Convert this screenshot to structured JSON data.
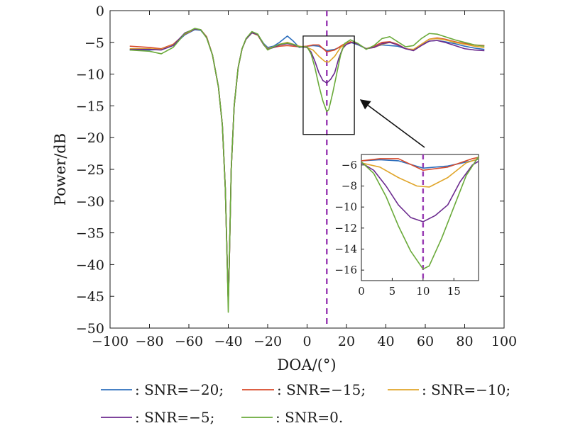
{
  "chart_data": {
    "type": "line",
    "xlabel": "DOA/(°)",
    "ylabel": "Power/dB",
    "xlim": [
      -100,
      100
    ],
    "ylim": [
      -50,
      0
    ],
    "xticks": [
      -100,
      -80,
      -60,
      -40,
      -20,
      0,
      20,
      40,
      60,
      80,
      100
    ],
    "yticks": [
      0,
      -5,
      -10,
      -15,
      -20,
      -25,
      -30,
      -35,
      -40,
      -45,
      -50
    ],
    "xtick_labels": [
      "−100",
      "−80",
      "−60",
      "−40",
      "−20",
      "0",
      "20",
      "40",
      "60",
      "80",
      "100"
    ],
    "ytick_labels": [
      "0",
      "−5",
      "−10",
      "−15",
      "−20",
      "−25",
      "−30",
      "−35",
      "−40",
      "−45",
      "−50"
    ],
    "grid": false,
    "reference_line": {
      "x": 10,
      "color": "#9b3fb5",
      "style": "dashed"
    },
    "series": [
      {
        "name": "SNR=-20",
        "color": "#2e6fbd",
        "points": [
          [
            -90,
            -6.2
          ],
          [
            -80,
            -6.2
          ],
          [
            -74,
            -6.1
          ],
          [
            -68,
            -5.5
          ],
          [
            -62,
            -3.8
          ],
          [
            -57,
            -3.0
          ],
          [
            -54,
            -3.1
          ],
          [
            -51,
            -4.2
          ],
          [
            -48,
            -7.0
          ],
          [
            -45,
            -12.0
          ],
          [
            -43,
            -18.0
          ],
          [
            -41.5,
            -28.0
          ],
          [
            -40.5,
            -40.0
          ],
          [
            -40,
            -46.0
          ],
          [
            -39.5,
            -40.0
          ],
          [
            -38.5,
            -25.0
          ],
          [
            -37,
            -15.0
          ],
          [
            -35,
            -9.0
          ],
          [
            -33,
            -6.0
          ],
          [
            -31,
            -4.5
          ],
          [
            -28,
            -3.5
          ],
          [
            -25,
            -3.8
          ],
          [
            -22,
            -5.2
          ],
          [
            -20,
            -5.8
          ],
          [
            -17,
            -5.6
          ],
          [
            -14,
            -5.0
          ],
          [
            -10,
            -4.0
          ],
          [
            -7,
            -4.8
          ],
          [
            -4,
            -5.8
          ],
          [
            0,
            -5.6
          ],
          [
            3,
            -5.5
          ],
          [
            6,
            -5.6
          ],
          [
            10,
            -6.3
          ],
          [
            14,
            -6.1
          ],
          [
            18,
            -5.6
          ],
          [
            22,
            -5.0
          ],
          [
            26,
            -5.4
          ],
          [
            30,
            -6.0
          ],
          [
            34,
            -5.7
          ],
          [
            38,
            -5.4
          ],
          [
            42,
            -5.5
          ],
          [
            46,
            -5.6
          ],
          [
            50,
            -6.0
          ],
          [
            54,
            -6.2
          ],
          [
            58,
            -5.4
          ],
          [
            62,
            -4.8
          ],
          [
            66,
            -4.7
          ],
          [
            70,
            -4.9
          ],
          [
            75,
            -5.2
          ],
          [
            80,
            -5.6
          ],
          [
            85,
            -5.9
          ],
          [
            90,
            -6.1
          ]
        ]
      },
      {
        "name": "SNR=-15",
        "color": "#d84a2a",
        "points": [
          [
            -90,
            -5.6
          ],
          [
            -80,
            -5.8
          ],
          [
            -74,
            -6.0
          ],
          [
            -68,
            -5.3
          ],
          [
            -62,
            -3.7
          ],
          [
            -57,
            -2.9
          ],
          [
            -54,
            -3.0
          ],
          [
            -51,
            -4.1
          ],
          [
            -48,
            -7.0
          ],
          [
            -45,
            -12.0
          ],
          [
            -43,
            -18.0
          ],
          [
            -41.5,
            -28.0
          ],
          [
            -40.5,
            -40.0
          ],
          [
            -40,
            -46.0
          ],
          [
            -39.5,
            -40.0
          ],
          [
            -38.5,
            -25.0
          ],
          [
            -37,
            -15.0
          ],
          [
            -35,
            -9.0
          ],
          [
            -33,
            -6.0
          ],
          [
            -31,
            -4.5
          ],
          [
            -28,
            -3.4
          ],
          [
            -25,
            -3.8
          ],
          [
            -22,
            -5.3
          ],
          [
            -20,
            -6.0
          ],
          [
            -17,
            -5.8
          ],
          [
            -14,
            -5.6
          ],
          [
            -10,
            -5.5
          ],
          [
            -7,
            -5.6
          ],
          [
            -4,
            -5.7
          ],
          [
            0,
            -5.6
          ],
          [
            3,
            -5.4
          ],
          [
            6,
            -5.4
          ],
          [
            10,
            -6.5
          ],
          [
            14,
            -6.2
          ],
          [
            18,
            -5.4
          ],
          [
            22,
            -4.9
          ],
          [
            26,
            -5.3
          ],
          [
            30,
            -6.0
          ],
          [
            34,
            -5.6
          ],
          [
            38,
            -5.0
          ],
          [
            42,
            -4.9
          ],
          [
            46,
            -5.3
          ],
          [
            50,
            -6.0
          ],
          [
            54,
            -6.2
          ],
          [
            58,
            -5.3
          ],
          [
            62,
            -4.5
          ],
          [
            66,
            -4.3
          ],
          [
            70,
            -4.5
          ],
          [
            75,
            -4.9
          ],
          [
            80,
            -5.2
          ],
          [
            85,
            -5.4
          ],
          [
            90,
            -5.5
          ]
        ]
      },
      {
        "name": "SNR=-10",
        "color": "#e0a52a",
        "points": [
          [
            -90,
            -6.0
          ],
          [
            -80,
            -6.0
          ],
          [
            -74,
            -6.1
          ],
          [
            -68,
            -5.4
          ],
          [
            -62,
            -3.6
          ],
          [
            -57,
            -2.9
          ],
          [
            -54,
            -3.0
          ],
          [
            -51,
            -4.1
          ],
          [
            -48,
            -7.0
          ],
          [
            -45,
            -12.0
          ],
          [
            -43,
            -18.0
          ],
          [
            -41.5,
            -28.0
          ],
          [
            -40.5,
            -40.0
          ],
          [
            -40,
            -46.0
          ],
          [
            -39.5,
            -40.0
          ],
          [
            -38.5,
            -25.0
          ],
          [
            -37,
            -15.0
          ],
          [
            -35,
            -9.0
          ],
          [
            -33,
            -6.0
          ],
          [
            -31,
            -4.5
          ],
          [
            -28,
            -3.5
          ],
          [
            -25,
            -3.9
          ],
          [
            -22,
            -5.4
          ],
          [
            -20,
            -6.0
          ],
          [
            -17,
            -5.7
          ],
          [
            -14,
            -5.3
          ],
          [
            -10,
            -5.0
          ],
          [
            -7,
            -5.3
          ],
          [
            -4,
            -5.6
          ],
          [
            0,
            -5.8
          ],
          [
            3,
            -6.2
          ],
          [
            6,
            -7.2
          ],
          [
            9,
            -8.0
          ],
          [
            11,
            -8.1
          ],
          [
            14,
            -7.2
          ],
          [
            17,
            -5.8
          ],
          [
            20,
            -5.2
          ],
          [
            23,
            -5.0
          ],
          [
            26,
            -5.3
          ],
          [
            30,
            -6.0
          ],
          [
            34,
            -5.8
          ],
          [
            38,
            -5.3
          ],
          [
            42,
            -5.0
          ],
          [
            46,
            -5.4
          ],
          [
            50,
            -6.0
          ],
          [
            54,
            -6.1
          ],
          [
            58,
            -5.3
          ],
          [
            62,
            -4.5
          ],
          [
            66,
            -4.4
          ],
          [
            70,
            -4.6
          ],
          [
            75,
            -5.0
          ],
          [
            80,
            -5.3
          ],
          [
            85,
            -5.6
          ],
          [
            90,
            -5.8
          ]
        ]
      },
      {
        "name": "SNR=-5",
        "color": "#6b2a8e",
        "points": [
          [
            -90,
            -6.1
          ],
          [
            -80,
            -6.1
          ],
          [
            -74,
            -6.2
          ],
          [
            -68,
            -5.5
          ],
          [
            -62,
            -3.5
          ],
          [
            -57,
            -2.9
          ],
          [
            -54,
            -3.0
          ],
          [
            -51,
            -4.2
          ],
          [
            -48,
            -7.0
          ],
          [
            -45,
            -12.0
          ],
          [
            -43,
            -18.0
          ],
          [
            -41.5,
            -28.0
          ],
          [
            -40.5,
            -40.0
          ],
          [
            -40,
            -46.0
          ],
          [
            -39.5,
            -40.0
          ],
          [
            -38.5,
            -25.0
          ],
          [
            -37,
            -15.0
          ],
          [
            -35,
            -9.0
          ],
          [
            -33,
            -6.0
          ],
          [
            -31,
            -4.5
          ],
          [
            -28,
            -3.5
          ],
          [
            -25,
            -3.8
          ],
          [
            -22,
            -5.4
          ],
          [
            -20,
            -6.1
          ],
          [
            -17,
            -5.8
          ],
          [
            -14,
            -5.4
          ],
          [
            -10,
            -5.2
          ],
          [
            -7,
            -5.4
          ],
          [
            -4,
            -5.7
          ],
          [
            0,
            -5.8
          ],
          [
            2,
            -6.5
          ],
          [
            4,
            -8.0
          ],
          [
            6,
            -9.8
          ],
          [
            8,
            -11.0
          ],
          [
            10,
            -11.4
          ],
          [
            12,
            -10.8
          ],
          [
            14,
            -9.8
          ],
          [
            16,
            -7.6
          ],
          [
            18,
            -6.0
          ],
          [
            20,
            -5.3
          ],
          [
            23,
            -5.0
          ],
          [
            26,
            -5.3
          ],
          [
            30,
            -6.0
          ],
          [
            34,
            -5.8
          ],
          [
            38,
            -5.2
          ],
          [
            42,
            -5.0
          ],
          [
            46,
            -5.4
          ],
          [
            50,
            -6.0
          ],
          [
            54,
            -6.3
          ],
          [
            58,
            -5.5
          ],
          [
            62,
            -4.8
          ],
          [
            66,
            -4.7
          ],
          [
            70,
            -5.0
          ],
          [
            75,
            -5.5
          ],
          [
            80,
            -6.0
          ],
          [
            85,
            -6.2
          ],
          [
            90,
            -6.3
          ]
        ]
      },
      {
        "name": "SNR=0",
        "color": "#6aaa3a",
        "points": [
          [
            -90,
            -6.2
          ],
          [
            -80,
            -6.4
          ],
          [
            -74,
            -6.8
          ],
          [
            -68,
            -5.8
          ],
          [
            -62,
            -3.6
          ],
          [
            -57,
            -2.8
          ],
          [
            -54,
            -3.0
          ],
          [
            -51,
            -4.3
          ],
          [
            -48,
            -7.0
          ],
          [
            -45,
            -12.0
          ],
          [
            -43,
            -18.0
          ],
          [
            -41.5,
            -28.0
          ],
          [
            -40.5,
            -40.0
          ],
          [
            -40,
            -47.5
          ],
          [
            -39.5,
            -40.0
          ],
          [
            -38.5,
            -25.0
          ],
          [
            -37,
            -15.0
          ],
          [
            -35,
            -9.0
          ],
          [
            -33,
            -6.0
          ],
          [
            -31,
            -4.4
          ],
          [
            -28,
            -3.3
          ],
          [
            -25,
            -3.7
          ],
          [
            -22,
            -5.3
          ],
          [
            -20,
            -6.2
          ],
          [
            -17,
            -5.7
          ],
          [
            -14,
            -5.3
          ],
          [
            -10,
            -5.1
          ],
          [
            -7,
            -5.3
          ],
          [
            -4,
            -5.7
          ],
          [
            0,
            -5.7
          ],
          [
            2,
            -6.8
          ],
          [
            4,
            -9.0
          ],
          [
            6,
            -11.8
          ],
          [
            8,
            -14.2
          ],
          [
            10,
            -15.9
          ],
          [
            11,
            -15.6
          ],
          [
            13,
            -13.0
          ],
          [
            15,
            -10.0
          ],
          [
            17,
            -7.0
          ],
          [
            19,
            -5.2
          ],
          [
            22,
            -4.6
          ],
          [
            26,
            -5.2
          ],
          [
            30,
            -6.1
          ],
          [
            34,
            -5.5
          ],
          [
            38,
            -4.4
          ],
          [
            42,
            -4.1
          ],
          [
            46,
            -4.9
          ],
          [
            50,
            -5.7
          ],
          [
            54,
            -5.5
          ],
          [
            58,
            -4.4
          ],
          [
            62,
            -3.6
          ],
          [
            66,
            -3.7
          ],
          [
            70,
            -4.1
          ],
          [
            75,
            -4.6
          ],
          [
            80,
            -5.0
          ],
          [
            85,
            -5.4
          ],
          [
            90,
            -5.6
          ]
        ]
      }
    ],
    "inset": {
      "xlim": [
        0,
        19
      ],
      "ylim": [
        -17,
        -5
      ],
      "xticks": [
        0,
        5,
        10,
        15
      ],
      "yticks": [
        -6,
        -8,
        -10,
        -12,
        -14,
        -16
      ],
      "xtick_labels": [
        "0",
        "5",
        "10",
        "15"
      ],
      "ytick_labels": [
        "−6",
        "−8",
        "−10",
        "−12",
        "−14",
        "−16"
      ],
      "zoom_region": {
        "x": [
          -2,
          24
        ],
        "y": [
          -4,
          -19.5
        ]
      }
    }
  },
  "legend": {
    "entries": [
      ": SNR=−20;",
      ": SNR=−15;",
      ": SNR=−10;",
      ": SNR=−5;",
      ": SNR=0."
    ]
  }
}
